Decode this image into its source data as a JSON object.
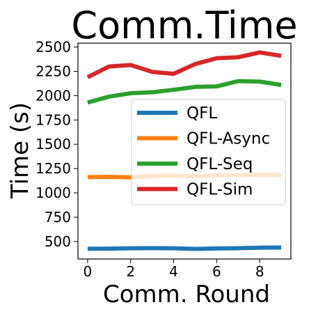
{
  "chart_data": {
    "type": "line",
    "title": "Comm.Time",
    "xlabel": "Comm. Round",
    "ylabel": "Time (s)",
    "xlim": [
      -0.45,
      9.45
    ],
    "ylim": [
      320,
      2540
    ],
    "xticks": [
      "0",
      "2",
      "4",
      "6",
      "8"
    ],
    "yticks": [
      "500",
      "750",
      "1000",
      "1250",
      "1500",
      "1750",
      "2000",
      "2250",
      "2500"
    ],
    "grid": false,
    "legend_position": "center-right",
    "x": [
      0,
      1,
      2,
      3,
      4,
      5,
      6,
      7,
      8,
      9
    ],
    "series": [
      {
        "name": "QFL",
        "color": "#1f77b4",
        "values": [
          425,
          427,
          430,
          432,
          430,
          424,
          428,
          431,
          437,
          438
        ]
      },
      {
        "name": "QFL-Async",
        "color": "#ff7f0e",
        "values": [
          1162,
          1165,
          1160,
          1175,
          1178,
          1170,
          1180,
          1183,
          1187,
          1185
        ]
      },
      {
        "name": "QFL-Seq",
        "color": "#2ca02c",
        "values": [
          1930,
          1990,
          2025,
          2035,
          2060,
          2090,
          2095,
          2150,
          2145,
          2110
        ]
      },
      {
        "name": "QFL-Sim",
        "color": "#d62728",
        "values": [
          2190,
          2300,
          2315,
          2245,
          2225,
          2325,
          2385,
          2395,
          2445,
          2410
        ]
      }
    ]
  }
}
